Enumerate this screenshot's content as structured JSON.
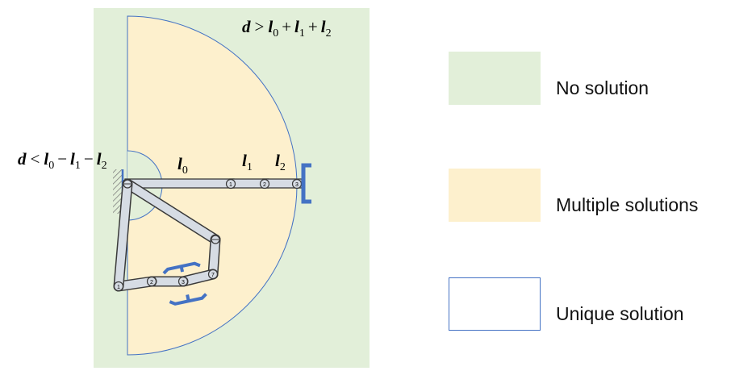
{
  "colors": {
    "no_solution": "#e2efd9",
    "multiple_solutions": "#fdf0cd",
    "unique_solution_border": "#4472c4",
    "link_fill": "#d6dce4",
    "link_stroke": "#3a3a3a",
    "gripper": "#4472c4"
  },
  "annotations": {
    "outer_condition": {
      "lhs": "d",
      "op": ">",
      "rhs": [
        "l",
        "0",
        "+",
        "l",
        "1",
        "+",
        "l",
        "2"
      ]
    },
    "inner_condition": {
      "lhs": "d",
      "op": "<",
      "rhs": [
        "l",
        "0",
        "−",
        "l",
        "1",
        "−",
        "l",
        "2"
      ]
    },
    "link_labels": [
      {
        "base": "l",
        "sub": "0"
      },
      {
        "base": "l",
        "sub": "1"
      },
      {
        "base": "l",
        "sub": "2"
      }
    ]
  },
  "joints": {
    "straight_arm": [
      "1",
      "2",
      "3"
    ],
    "bent_arm": [
      "1",
      "2",
      "3",
      "7"
    ]
  },
  "legend": [
    {
      "label": "No solution",
      "swatch": "no_solution"
    },
    {
      "label": "Multiple solutions",
      "swatch": "multiple_solutions"
    },
    {
      "label": "Unique solution",
      "swatch": "unique_solution"
    }
  ]
}
